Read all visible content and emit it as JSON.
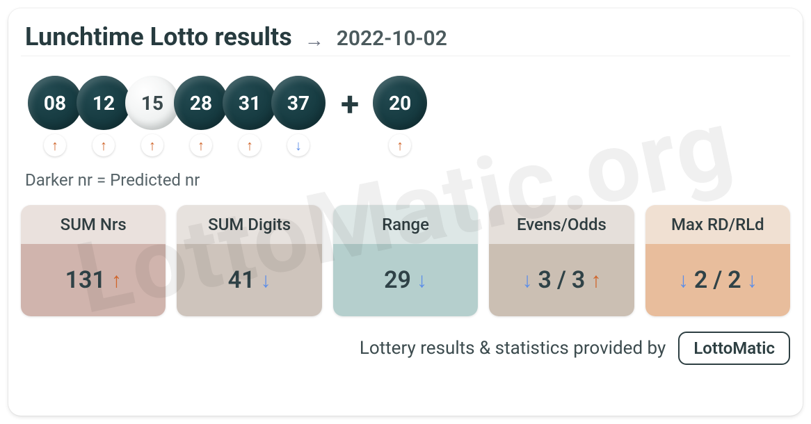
{
  "header": {
    "title": "Lunchtime Lotto results",
    "date": "2022-10-02"
  },
  "colors": {
    "ball_dark": "#173c42",
    "ball_light": "#e9edec",
    "trend_up": "#d0652a",
    "trend_down": "#5c8ee8",
    "text_main": "#273b3f",
    "text_muted": "#566368"
  },
  "balls": [
    {
      "value": "08",
      "predicted": true,
      "trend": "up"
    },
    {
      "value": "12",
      "predicted": true,
      "trend": "up"
    },
    {
      "value": "15",
      "predicted": false,
      "trend": "up"
    },
    {
      "value": "28",
      "predicted": true,
      "trend": "up"
    },
    {
      "value": "31",
      "predicted": true,
      "trend": "up"
    },
    {
      "value": "37",
      "predicted": true,
      "trend": "down"
    }
  ],
  "bonus": {
    "value": "20",
    "predicted": true,
    "trend": "up"
  },
  "legend": "Darker nr = Predicted nr",
  "stat_cards": [
    {
      "label": "SUM Nrs",
      "head_bg": "#eae1dd",
      "body_bg": "#d0b4ad",
      "parts": [
        {
          "type": "value",
          "text": "131"
        },
        {
          "type": "arrow",
          "dir": "up"
        }
      ]
    },
    {
      "label": "SUM Digits",
      "head_bg": "#e7e2de",
      "body_bg": "#cec4bc",
      "parts": [
        {
          "type": "value",
          "text": "41"
        },
        {
          "type": "arrow",
          "dir": "down"
        }
      ]
    },
    {
      "label": "Range",
      "head_bg": "#dde7e6",
      "body_bg": "#b5cfcd",
      "parts": [
        {
          "type": "value",
          "text": "29"
        },
        {
          "type": "arrow",
          "dir": "down"
        }
      ]
    },
    {
      "label": "Evens/Odds",
      "head_bg": "#e5dfda",
      "body_bg": "#cbbfb3",
      "parts": [
        {
          "type": "arrow",
          "dir": "down"
        },
        {
          "type": "value",
          "text": "3"
        },
        {
          "type": "slash",
          "text": "/"
        },
        {
          "type": "value",
          "text": "3"
        },
        {
          "type": "arrow",
          "dir": "up"
        }
      ]
    },
    {
      "label": "Max RD/RLd",
      "head_bg": "#f0e0d2",
      "body_bg": "#e8bd9c",
      "parts": [
        {
          "type": "arrow",
          "dir": "down"
        },
        {
          "type": "value",
          "text": "2"
        },
        {
          "type": "slash",
          "text": "/"
        },
        {
          "type": "value",
          "text": "2"
        },
        {
          "type": "arrow",
          "dir": "down"
        }
      ]
    }
  ],
  "footer": {
    "text": "Lottery results & statistics provided by",
    "brand": "LottoMatic"
  },
  "watermark": "LottoMatic.org"
}
